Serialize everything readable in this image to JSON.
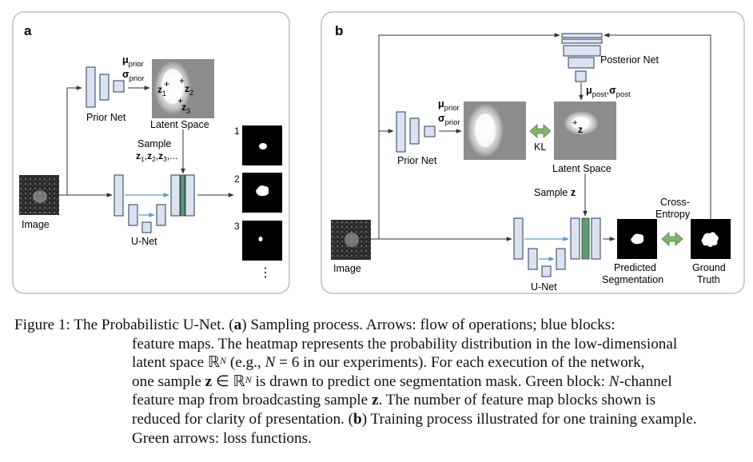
{
  "panel_a": {
    "letter": "a",
    "prior_net_label": "Prior Net",
    "mu_prior": "μ",
    "mu_prior_sub": "prior",
    "sigma_prior": "σ",
    "sigma_prior_sub": "prior",
    "latent_space_label": "Latent Space",
    "z1": "z",
    "z1_sub": "1",
    "z2": "z",
    "z2_sub": "2",
    "z3": "z",
    "z3_sub": "3",
    "sample_label": "Sample",
    "sample_zs": "z",
    "sample_z_subs": [
      "1",
      "2",
      "3"
    ],
    "sample_ellipsis": "...",
    "image_label": "Image",
    "unet_label": "U-Net",
    "output_numbers": [
      "1",
      "2",
      "3"
    ],
    "more_dots": "⋮"
  },
  "panel_b": {
    "letter": "b",
    "posterior_net_label": "Posterior Net",
    "mu_post": "μ",
    "mu_post_sub": "post",
    "sigma_post": "σ",
    "sigma_post_sub": "post",
    "prior_net_label": "Prior Net",
    "mu_prior": "μ",
    "mu_prior_sub": "prior",
    "sigma_prior": "σ",
    "sigma_prior_sub": "prior",
    "kl_label": "KL",
    "latent_space_label": "Latent Space",
    "z_label": "z",
    "sample_label": "Sample",
    "sample_z": "z",
    "cross_entropy_1": "Cross-",
    "cross_entropy_2": "Entropy",
    "image_label": "Image",
    "unet_label": "U-Net",
    "predicted_1": "Predicted",
    "predicted_2": "Segmentation",
    "ground_1": "Ground",
    "ground_2": "Truth"
  },
  "caption": {
    "l1_a": "Figure 1: The Probabilistic U-Net. (",
    "l1_b": "a",
    "l1_c": ") Sampling process. Arrows: flow of operations; blue blocks:",
    "l2": "feature maps. The heatmap represents the probability distribution in the low-dimensional",
    "l3_a": "latent space ",
    "l3_R": "ℝ",
    "l3_N": "N",
    "l3_c": " (e.g., ",
    "l3_N2": "N",
    "l3_d": " = 6 in our experiments). For each execution of the network,",
    "l4_a": "one sample ",
    "l4_z": "z",
    "l4_b": " ∈ ",
    "l4_R": "ℝ",
    "l4_N": "N",
    "l4_c": " is drawn to predict one segmentation mask. Green block: ",
    "l4_N2": "N",
    "l4_d": "-channel",
    "l5_a": "feature map from broadcasting sample ",
    "l5_z": "z",
    "l5_b": ". The number of feature map blocks shown is",
    "l6_a": "reduced for clarity of presentation. (",
    "l6_b": "b",
    "l6_c": ") Training process illustrated for one training example.",
    "l7": "Green arrows: loss functions."
  },
  "colors": {
    "block_fill": "#d9e3f2",
    "block_stroke": "#2b3a55",
    "skip_arrow": "#5b9bd5",
    "green_block": "#5e9c6e",
    "green_arrow": "#7fb26a",
    "heatmap_bg": "#8c8c8c"
  }
}
